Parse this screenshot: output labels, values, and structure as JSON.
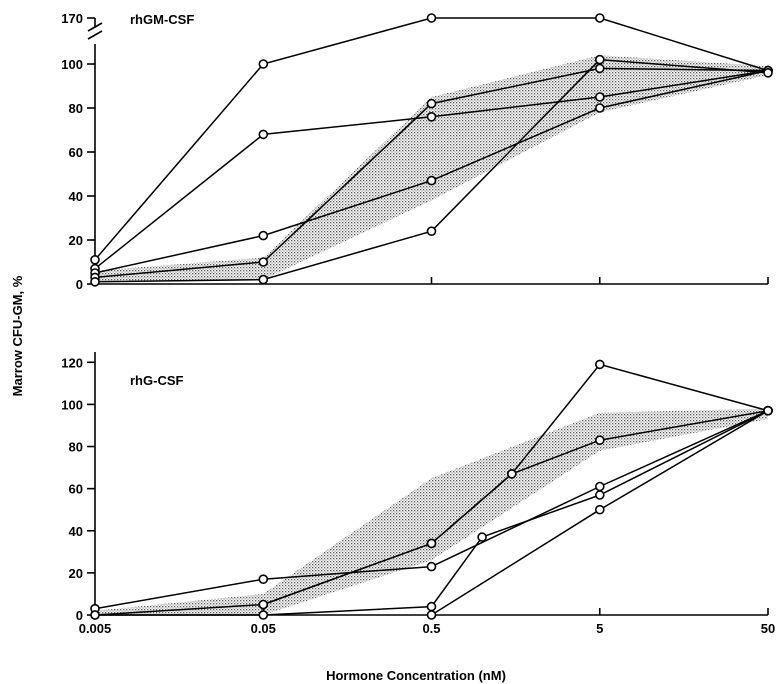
{
  "figure": {
    "ylabel": "Marrow CFU-GM, %",
    "xlabel": "Hormone Concentration (nM)"
  },
  "chart_data": [
    {
      "type": "line",
      "panel_label": "rhGM-CSF",
      "x_scale": "log",
      "x": [
        0.005,
        0.05,
        0.5,
        5,
        50
      ],
      "xticks": [
        "0.005",
        "0.05",
        "0.5",
        "5",
        "50"
      ],
      "xtick_labels_shown": false,
      "ylim": [
        0,
        110
      ],
      "yticks": [
        0,
        20,
        40,
        60,
        80,
        100
      ],
      "axis_break": true,
      "break_tick": "170",
      "break_value": 170,
      "grid": false,
      "series": [
        {
          "values": [
            11,
            100,
            170,
            168,
            97
          ]
        },
        {
          "values": [
            7,
            68,
            76,
            85,
            97
          ]
        },
        {
          "values": [
            5,
            22,
            47,
            80,
            97
          ]
        },
        {
          "values": [
            3,
            10,
            82,
            98,
            97
          ]
        },
        {
          "values": [
            1,
            2,
            24,
            102,
            96
          ]
        }
      ],
      "shaded_band": {
        "x": [
          0.005,
          0.05,
          0.5,
          5,
          50
        ],
        "lower": [
          1,
          2,
          38,
          78,
          95
        ],
        "upper": [
          6,
          12,
          85,
          104,
          99
        ]
      }
    },
    {
      "type": "line",
      "panel_label": "rhG-CSF",
      "x_scale": "log",
      "x": [
        0.005,
        0.05,
        0.5,
        5,
        50
      ],
      "xticks": [
        "0.005",
        "0.05",
        "0.5",
        "5",
        "50"
      ],
      "ylim": [
        0,
        120
      ],
      "yticks": [
        0,
        20,
        40,
        60,
        80,
        100,
        120
      ],
      "grid": false,
      "series": [
        {
          "points": [
            [
              0.005,
              3
            ],
            [
              0.05,
              17
            ],
            [
              0.5,
              23
            ],
            [
              5,
              61
            ],
            [
              50,
              97
            ]
          ]
        },
        {
          "points": [
            [
              0.005,
              0
            ],
            [
              0.05,
              5
            ],
            [
              0.5,
              34
            ],
            [
              1.5,
              67
            ],
            [
              5,
              119
            ],
            [
              50,
              97
            ]
          ]
        },
        {
          "points": [
            [
              0.05,
              5
            ],
            [
              0.5,
              34
            ],
            [
              1.5,
              67
            ],
            [
              5,
              83
            ],
            [
              50,
              97
            ]
          ]
        },
        {
          "points": [
            [
              0.005,
              0
            ],
            [
              0.05,
              0
            ],
            [
              0.5,
              4
            ],
            [
              1,
              37
            ],
            [
              5,
              57
            ],
            [
              50,
              97
            ]
          ]
        },
        {
          "points": [
            [
              0.5,
              0
            ],
            [
              5,
              50
            ],
            [
              50,
              97
            ]
          ]
        }
      ],
      "shaded_band": {
        "x": [
          0.005,
          0.05,
          0.5,
          5,
          50
        ],
        "lower": [
          0,
          0,
          26,
          78,
          93
        ],
        "upper": [
          2,
          10,
          65,
          96,
          98
        ]
      }
    }
  ]
}
